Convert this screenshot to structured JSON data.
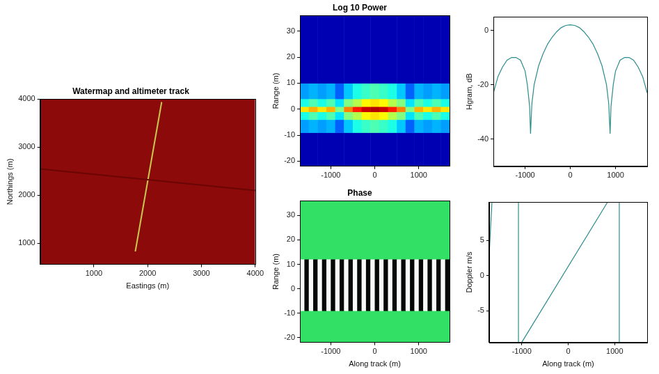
{
  "chart_data": [
    {
      "type": "line",
      "title": "Watermap and altimeter track",
      "x_label": "Eastings (m)",
      "y_label": "Northings (m)",
      "xlim": [
        0,
        4000
      ],
      "ylim": [
        560,
        4000
      ],
      "xticks": [
        1000,
        2000,
        3000,
        4000
      ],
      "yticks": [
        1000,
        2000,
        3000,
        4000
      ],
      "grid": false,
      "series": [
        {
          "color": "#6a0505",
          "x": [
            0,
            4000
          ],
          "values": [
            2550,
            2100
          ]
        },
        {
          "color": "#c8c850",
          "x": [
            1770,
            2260
          ],
          "values": [
            830,
            3940
          ]
        }
      ]
    },
    {
      "type": "heatmap",
      "title": "Log 10 Power",
      "y_label": "Range (m)",
      "xlim": [
        -1700,
        1700
      ],
      "ylim": [
        -22,
        36
      ],
      "xticks": [
        -1000,
        0,
        1000
      ],
      "yticks": [
        -20,
        -10,
        0,
        10,
        20,
        30
      ],
      "grid": false,
      "clim": [
        0,
        10
      ],
      "x_edges": [
        -1700,
        -1500,
        -1300,
        -1100,
        -900,
        -700,
        -500,
        -300,
        -100,
        100,
        300,
        500,
        700,
        900,
        1100,
        1300,
        1500,
        1700
      ],
      "y_edges": [
        -22,
        -9,
        -4,
        -1,
        1,
        4,
        10,
        36
      ],
      "cells": [
        [
          0.5,
          0.5,
          0.5,
          0.5,
          0.5,
          0.5,
          0.5,
          0.5,
          0.5,
          0.5,
          0.5,
          0.5,
          0.5,
          0.5,
          0.5,
          0.5,
          0.5
        ],
        [
          2.8,
          3,
          2.8,
          3,
          2.2,
          3.2,
          4,
          4.3,
          4.5,
          4.3,
          4,
          3.2,
          2.2,
          3,
          2.8,
          3,
          2.8
        ],
        [
          4,
          4.5,
          4,
          4.5,
          3.5,
          5,
          5.5,
          6.3,
          6.5,
          6.3,
          5.5,
          5,
          3.5,
          4.5,
          4,
          4.5,
          4
        ],
        [
          6.5,
          7,
          6.5,
          7,
          5,
          7.5,
          8.5,
          9.3,
          9.5,
          9.3,
          8.5,
          7.5,
          5,
          7,
          6.5,
          7,
          6.5
        ],
        [
          4,
          4.5,
          4,
          4.5,
          3.5,
          5,
          5.5,
          6.3,
          6.5,
          6.3,
          5.5,
          5,
          3.5,
          4.5,
          4,
          4.5,
          4
        ],
        [
          2.8,
          3,
          2.8,
          3,
          2.2,
          3.2,
          4,
          4.3,
          4.5,
          4.3,
          4,
          3.2,
          2.2,
          3,
          2.8,
          3,
          2.8
        ],
        [
          0.5,
          0.5,
          0.5,
          0.5,
          0.5,
          0.5,
          0.5,
          0.5,
          0.5,
          0.5,
          0.5,
          0.5,
          0.5,
          0.5,
          0.5,
          0.5,
          0.5
        ]
      ]
    },
    {
      "type": "heatmap",
      "title": "Phase",
      "x_label": "Along track (m)",
      "y_label": "Range (m)",
      "xlim": [
        -1700,
        1700
      ],
      "ylim": [
        -22,
        36
      ],
      "xticks": [
        -1000,
        0,
        1000
      ],
      "yticks": [
        -20,
        -10,
        0,
        10,
        20,
        30
      ],
      "grid": false,
      "clim": [
        -3.14,
        3.14
      ],
      "x_edges": [
        -1700,
        -1600,
        -1500,
        -1400,
        -1300,
        -1200,
        -1100,
        -1000,
        -900,
        -800,
        -700,
        -600,
        -500,
        -400,
        -300,
        -200,
        -100,
        0,
        100,
        200,
        300,
        400,
        500,
        600,
        700,
        800,
        900,
        1000,
        1100,
        1200,
        1300,
        1400,
        1500,
        1600,
        1700
      ],
      "y_edges": [
        -22,
        -9,
        12,
        36
      ],
      "cells": [
        [
          null,
          null,
          null,
          null,
          null,
          null,
          null,
          null,
          null,
          null,
          null,
          null,
          null,
          null,
          null,
          null,
          null,
          null,
          null,
          null,
          null,
          null,
          null,
          null,
          null,
          null,
          null,
          null,
          null,
          null,
          null,
          null,
          null,
          null
        ],
        [
          3,
          -3,
          3,
          -3,
          3,
          -3,
          3,
          -3,
          3,
          -3,
          3,
          -3,
          3,
          -3,
          3,
          -3,
          3,
          -3,
          3,
          -3,
          3,
          -3,
          3,
          -3,
          3,
          -3,
          3,
          -3,
          3,
          -3,
          3,
          -3,
          3,
          -3
        ],
        [
          null,
          null,
          null,
          null,
          null,
          null,
          null,
          null,
          null,
          null,
          null,
          null,
          null,
          null,
          null,
          null,
          null,
          null,
          null,
          null,
          null,
          null,
          null,
          null,
          null,
          null,
          null,
          null,
          null,
          null,
          null,
          null,
          null,
          null
        ]
      ]
    },
    {
      "type": "line",
      "y_label": "Hgram, dB",
      "xlim": [
        -1700,
        1700
      ],
      "ylim": [
        -50,
        5
      ],
      "xticks": [
        -1000,
        0,
        1000
      ],
      "yticks": [
        -40,
        -20,
        0
      ],
      "grid": false,
      "series": [
        {
          "color": "#2b8c8c",
          "x": [
            -1700,
            -1600,
            -1500,
            -1400,
            -1300,
            -1200,
            -1100,
            -1000,
            -950,
            -900,
            -880,
            -850,
            -800,
            -700,
            -600,
            -500,
            -400,
            -300,
            -200,
            -100,
            0,
            100,
            200,
            300,
            400,
            500,
            600,
            700,
            800,
            850,
            880,
            900,
            950,
            1000,
            1100,
            1200,
            1300,
            1400,
            1500,
            1600,
            1700
          ],
          "values": [
            -23,
            -17,
            -13.5,
            -11,
            -10,
            -10,
            -11,
            -15,
            -20,
            -28,
            -38,
            -27,
            -20,
            -13,
            -8.5,
            -5,
            -2.5,
            -0.5,
            1,
            1.8,
            2,
            1.8,
            1,
            -0.5,
            -2.5,
            -5,
            -8.5,
            -13,
            -20,
            -27,
            -38,
            -28,
            -20,
            -15,
            -11,
            -10,
            -10,
            -11,
            -13.5,
            -17,
            -23
          ]
        }
      ]
    },
    {
      "type": "line",
      "x_label": "Along track (m)",
      "y_label": "Doppler m/s",
      "xlim": [
        -1700,
        1700
      ],
      "ylim": [
        -9.5,
        10.5
      ],
      "xticks": [
        -1000,
        0,
        1000
      ],
      "yticks": [
        -5,
        0,
        5
      ],
      "grid": false,
      "series": [
        {
          "color": "#2b8c8c",
          "x": [
            -1700,
            -1640,
            null,
            -1070,
            -1070,
            null,
            -1000,
            850,
            null,
            1100,
            1100
          ],
          "values": [
            3,
            10.5,
            null,
            10.5,
            -9.5,
            null,
            -9.5,
            10.5,
            null,
            10.5,
            -9.5
          ]
        }
      ]
    }
  ]
}
